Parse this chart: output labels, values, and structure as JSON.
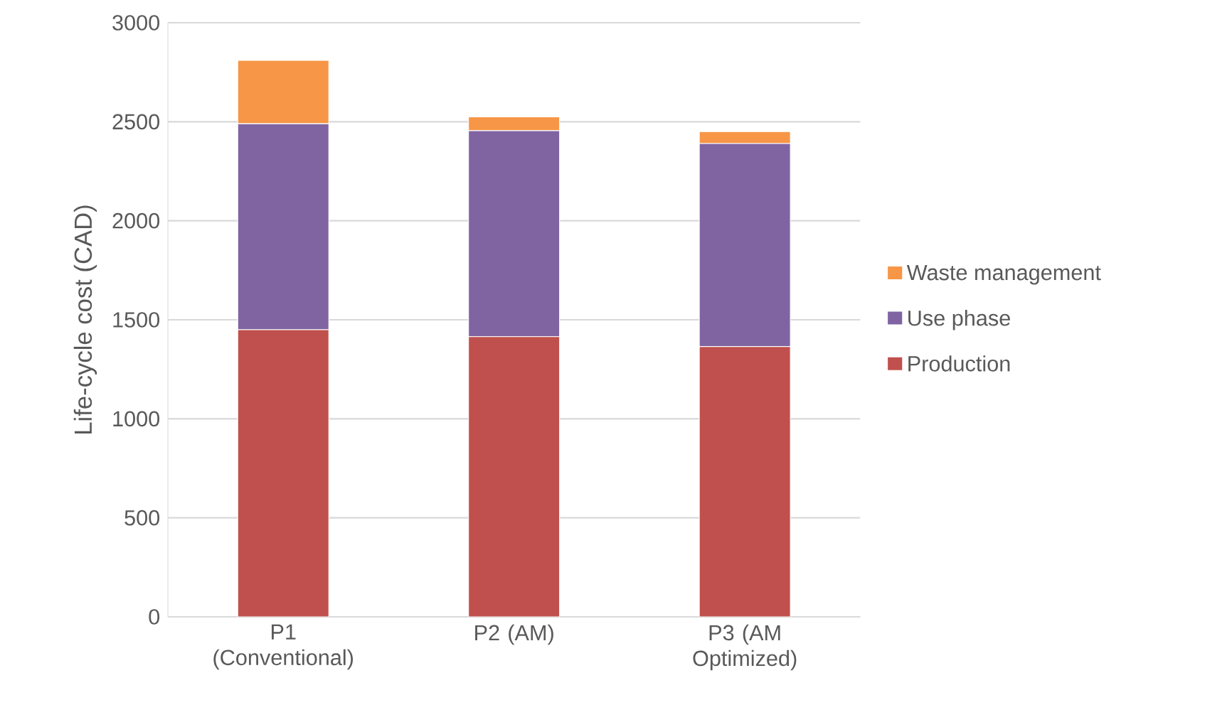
{
  "chart_data": {
    "type": "bar",
    "stacked": true,
    "ylabel": "Life-cycle cost (CAD)",
    "categories": [
      "P1 (Conventional)",
      "P2 (AM)",
      "P3 (AM Optimized)"
    ],
    "series": [
      {
        "name": "Production",
        "color": "#c0504d",
        "values": [
          1450,
          1415,
          1365
        ]
      },
      {
        "name": "Use phase",
        "color": "#8064a2",
        "values": [
          1040,
          1040,
          1025
        ]
      },
      {
        "name": "Waste management",
        "color": "#f79646",
        "values": [
          320,
          70,
          60
        ]
      }
    ],
    "ylim": [
      0,
      3000
    ],
    "yticks": [
      0,
      500,
      1000,
      1500,
      2000,
      2500,
      3000
    ],
    "grid": "y",
    "legend": "right"
  }
}
